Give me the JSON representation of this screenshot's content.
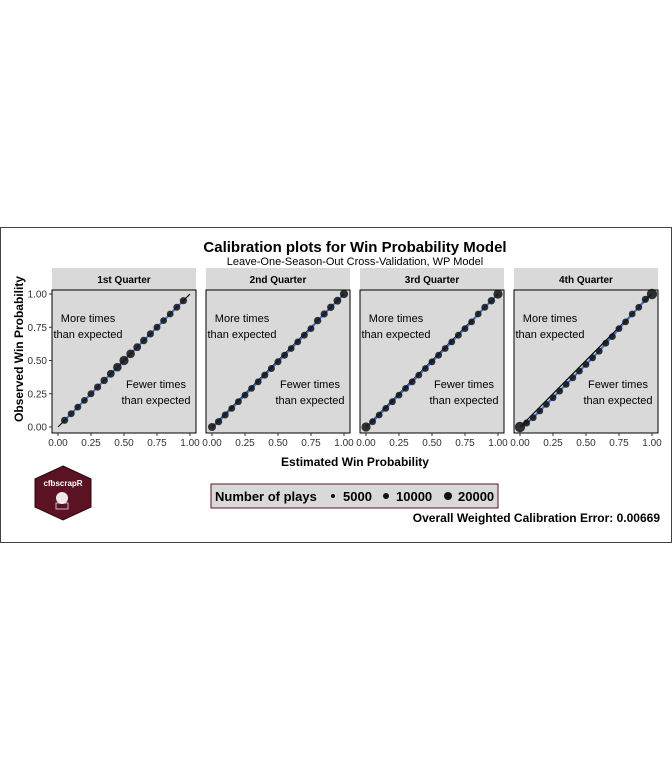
{
  "figure": {
    "title": "Calibration plots for Win Probability Model",
    "subtitle": "Leave-One-Season-Out Cross-Validation, WP Model",
    "xlabel": "Estimated Win Probability",
    "ylabel": "Observed Win Probability",
    "footer": "Overall Weighted Calibration Error: 0.00669",
    "logo_text": "cfbscrapR",
    "legend": {
      "title": "Number of plays",
      "items": [
        {
          "label": "5000",
          "size": 5000
        },
        {
          "label": "10000",
          "size": 10000
        },
        {
          "label": "20000",
          "size": 20000
        }
      ]
    },
    "colors": {
      "panel_bg": "#d9d9d9",
      "strip_bg": "#d9d9d9",
      "points": "#111111",
      "smooth_line": "#3a6fd8",
      "reference_line": "#000000",
      "logo_bg": "#5b1223"
    }
  },
  "chart_data": [
    {
      "type": "scatter",
      "panel": "1st Quarter",
      "xlim": [
        0,
        1
      ],
      "ylim": [
        0,
        1
      ],
      "xticks": [
        "0.00",
        "0.25",
        "0.50",
        "0.75",
        "1.00"
      ],
      "yticks": [
        "0.00",
        "0.25",
        "0.50",
        "0.75",
        "1.00"
      ],
      "annotations": {
        "upper": [
          "More times",
          "than expected"
        ],
        "lower": [
          "Fewer times",
          "than expected"
        ]
      },
      "points": [
        {
          "x": 0.05,
          "y": 0.05,
          "n": 6000
        },
        {
          "x": 0.1,
          "y": 0.1,
          "n": 5500
        },
        {
          "x": 0.15,
          "y": 0.15,
          "n": 5000
        },
        {
          "x": 0.2,
          "y": 0.2,
          "n": 5000
        },
        {
          "x": 0.25,
          "y": 0.25,
          "n": 5500
        },
        {
          "x": 0.3,
          "y": 0.3,
          "n": 6000
        },
        {
          "x": 0.35,
          "y": 0.35,
          "n": 6500
        },
        {
          "x": 0.4,
          "y": 0.4,
          "n": 8000
        },
        {
          "x": 0.45,
          "y": 0.45,
          "n": 11000
        },
        {
          "x": 0.5,
          "y": 0.5,
          "n": 14000
        },
        {
          "x": 0.55,
          "y": 0.55,
          "n": 11000
        },
        {
          "x": 0.6,
          "y": 0.6,
          "n": 8000
        },
        {
          "x": 0.65,
          "y": 0.65,
          "n": 6500
        },
        {
          "x": 0.7,
          "y": 0.7,
          "n": 6000
        },
        {
          "x": 0.75,
          "y": 0.75,
          "n": 5500
        },
        {
          "x": 0.8,
          "y": 0.8,
          "n": 5000
        },
        {
          "x": 0.85,
          "y": 0.85,
          "n": 5000
        },
        {
          "x": 0.9,
          "y": 0.9,
          "n": 5500
        },
        {
          "x": 0.95,
          "y": 0.95,
          "n": 6000
        }
      ]
    },
    {
      "type": "scatter",
      "panel": "2nd Quarter",
      "xlim": [
        0,
        1
      ],
      "ylim": [
        0,
        1
      ],
      "xticks": [
        "0.00",
        "0.25",
        "0.50",
        "0.75",
        "1.00"
      ],
      "yticks": [
        "0.00",
        "0.25",
        "0.50",
        "0.75",
        "1.00"
      ],
      "annotations": {
        "upper": [
          "More times",
          "than expected"
        ],
        "lower": [
          "Fewer times",
          "than expected"
        ]
      },
      "points": [
        {
          "x": 0.0,
          "y": 0.0,
          "n": 9000
        },
        {
          "x": 0.05,
          "y": 0.04,
          "n": 6000
        },
        {
          "x": 0.1,
          "y": 0.09,
          "n": 5500
        },
        {
          "x": 0.15,
          "y": 0.14,
          "n": 5000
        },
        {
          "x": 0.2,
          "y": 0.19,
          "n": 5000
        },
        {
          "x": 0.25,
          "y": 0.24,
          "n": 5000
        },
        {
          "x": 0.3,
          "y": 0.29,
          "n": 5000
        },
        {
          "x": 0.35,
          "y": 0.34,
          "n": 5000
        },
        {
          "x": 0.4,
          "y": 0.39,
          "n": 5500
        },
        {
          "x": 0.45,
          "y": 0.44,
          "n": 5500
        },
        {
          "x": 0.5,
          "y": 0.49,
          "n": 5500
        },
        {
          "x": 0.55,
          "y": 0.54,
          "n": 5500
        },
        {
          "x": 0.6,
          "y": 0.59,
          "n": 5000
        },
        {
          "x": 0.65,
          "y": 0.64,
          "n": 5000
        },
        {
          "x": 0.7,
          "y": 0.69,
          "n": 5000
        },
        {
          "x": 0.75,
          "y": 0.74,
          "n": 5000
        },
        {
          "x": 0.8,
          "y": 0.8,
          "n": 6500
        },
        {
          "x": 0.85,
          "y": 0.85,
          "n": 6000
        },
        {
          "x": 0.9,
          "y": 0.9,
          "n": 6500
        },
        {
          "x": 0.95,
          "y": 0.95,
          "n": 8000
        },
        {
          "x": 1.0,
          "y": 1.0,
          "n": 10000
        }
      ]
    },
    {
      "type": "scatter",
      "panel": "3rd Quarter",
      "xlim": [
        0,
        1
      ],
      "ylim": [
        0,
        1
      ],
      "xticks": [
        "0.00",
        "0.25",
        "0.50",
        "0.75",
        "1.00"
      ],
      "yticks": [
        "0.00",
        "0.25",
        "0.50",
        "0.75",
        "1.00"
      ],
      "annotations": {
        "upper": [
          "More times",
          "than expected"
        ],
        "lower": [
          "Fewer times",
          "than expected"
        ]
      },
      "points": [
        {
          "x": 0.0,
          "y": 0.0,
          "n": 14000
        },
        {
          "x": 0.05,
          "y": 0.04,
          "n": 5000
        },
        {
          "x": 0.1,
          "y": 0.09,
          "n": 5000
        },
        {
          "x": 0.15,
          "y": 0.14,
          "n": 5000
        },
        {
          "x": 0.2,
          "y": 0.19,
          "n": 5000
        },
        {
          "x": 0.25,
          "y": 0.24,
          "n": 5000
        },
        {
          "x": 0.3,
          "y": 0.29,
          "n": 5000
        },
        {
          "x": 0.35,
          "y": 0.34,
          "n": 5000
        },
        {
          "x": 0.4,
          "y": 0.39,
          "n": 5000
        },
        {
          "x": 0.45,
          "y": 0.44,
          "n": 5000
        },
        {
          "x": 0.5,
          "y": 0.49,
          "n": 5000
        },
        {
          "x": 0.55,
          "y": 0.54,
          "n": 5000
        },
        {
          "x": 0.6,
          "y": 0.59,
          "n": 5000
        },
        {
          "x": 0.65,
          "y": 0.64,
          "n": 5000
        },
        {
          "x": 0.7,
          "y": 0.69,
          "n": 5000
        },
        {
          "x": 0.75,
          "y": 0.74,
          "n": 5000
        },
        {
          "x": 0.8,
          "y": 0.79,
          "n": 5000
        },
        {
          "x": 0.85,
          "y": 0.85,
          "n": 5000
        },
        {
          "x": 0.9,
          "y": 0.9,
          "n": 5500
        },
        {
          "x": 0.95,
          "y": 0.95,
          "n": 6500
        },
        {
          "x": 1.0,
          "y": 1.0,
          "n": 14000
        }
      ]
    },
    {
      "type": "scatter",
      "panel": "4th Quarter",
      "xlim": [
        0,
        1
      ],
      "ylim": [
        0,
        1
      ],
      "xticks": [
        "0.00",
        "0.25",
        "0.50",
        "0.75",
        "1.00"
      ],
      "yticks": [
        "0.00",
        "0.25",
        "0.50",
        "0.75",
        "1.00"
      ],
      "annotations": {
        "upper": [
          "More times",
          "than expected"
        ],
        "lower": [
          "Fewer times",
          "than expected"
        ]
      },
      "points": [
        {
          "x": 0.0,
          "y": 0.0,
          "n": 20000
        },
        {
          "x": 0.05,
          "y": 0.03,
          "n": 5500
        },
        {
          "x": 0.1,
          "y": 0.07,
          "n": 5000
        },
        {
          "x": 0.15,
          "y": 0.12,
          "n": 5000
        },
        {
          "x": 0.2,
          "y": 0.17,
          "n": 5000
        },
        {
          "x": 0.25,
          "y": 0.22,
          "n": 5000
        },
        {
          "x": 0.3,
          "y": 0.27,
          "n": 5000
        },
        {
          "x": 0.35,
          "y": 0.32,
          "n": 5000
        },
        {
          "x": 0.4,
          "y": 0.37,
          "n": 5000
        },
        {
          "x": 0.45,
          "y": 0.42,
          "n": 5000
        },
        {
          "x": 0.5,
          "y": 0.47,
          "n": 5000
        },
        {
          "x": 0.55,
          "y": 0.52,
          "n": 5000
        },
        {
          "x": 0.6,
          "y": 0.57,
          "n": 5000
        },
        {
          "x": 0.65,
          "y": 0.63,
          "n": 5000
        },
        {
          "x": 0.7,
          "y": 0.68,
          "n": 5000
        },
        {
          "x": 0.75,
          "y": 0.74,
          "n": 5000
        },
        {
          "x": 0.8,
          "y": 0.79,
          "n": 5000
        },
        {
          "x": 0.85,
          "y": 0.85,
          "n": 5000
        },
        {
          "x": 0.9,
          "y": 0.9,
          "n": 5000
        },
        {
          "x": 0.95,
          "y": 0.96,
          "n": 6000
        },
        {
          "x": 1.0,
          "y": 1.0,
          "n": 20000
        }
      ]
    }
  ]
}
